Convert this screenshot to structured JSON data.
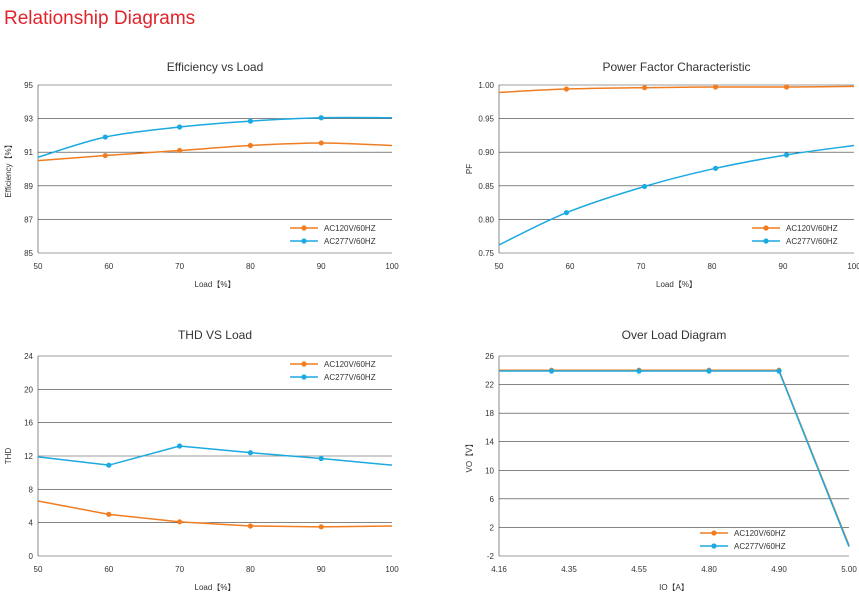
{
  "page_title": "Relationship Diagrams",
  "colors": {
    "ac120": "#f07d22",
    "ac277": "#1aa9e0",
    "grid": "#222222",
    "title": "#e0242c"
  },
  "chart_data": [
    {
      "type": "line",
      "title": "Efficiency vs Load",
      "xlabel": "Load【%】",
      "ylabel": "Efficiency【%】",
      "xlim": [
        50,
        100
      ],
      "ylim": [
        85,
        95
      ],
      "x_ticks": [
        50,
        60,
        70,
        80,
        90,
        100
      ],
      "x_tick_labels": [
        "50",
        "60",
        "70",
        "80",
        "90",
        "100"
      ],
      "y_ticks": [
        85,
        87,
        89,
        91,
        93,
        95
      ],
      "y_tick_labels": [
        "85",
        "87",
        "89",
        "91",
        "93",
        "95"
      ],
      "legend_position": "bottom-right",
      "series": [
        {
          "name": "AC120V/60HZ",
          "color": "#f07d22",
          "x": [
            50,
            59.5,
            70,
            80,
            90,
            100
          ],
          "y": [
            90.5,
            90.8,
            91.1,
            91.4,
            91.55,
            91.4
          ],
          "markers_x": [
            59.5,
            70,
            80,
            90
          ]
        },
        {
          "name": "AC277V/60HZ",
          "color": "#1aa9e0",
          "x": [
            50,
            59.5,
            70,
            80,
            90,
            100
          ],
          "y": [
            90.7,
            91.9,
            92.5,
            92.85,
            93.05,
            93.05
          ],
          "markers_x": [
            59.5,
            70,
            80,
            90
          ]
        }
      ]
    },
    {
      "type": "line",
      "title": "Power Factor Characteristic",
      "xlabel": "Load【%】",
      "ylabel": "PF",
      "xlim": [
        50,
        100
      ],
      "ylim": [
        0.75,
        1.0
      ],
      "x_ticks": [
        50,
        60,
        70,
        80,
        90,
        100
      ],
      "x_tick_labels": [
        "50",
        "60",
        "70",
        "80",
        "90",
        "100"
      ],
      "y_ticks": [
        0.75,
        0.8,
        0.85,
        0.9,
        0.95,
        1.0
      ],
      "y_tick_labels": [
        "0.75",
        "0.80",
        "0.85",
        "0.90",
        "0.95",
        "1.00"
      ],
      "legend_position": "bottom-right",
      "series": [
        {
          "name": "AC120V/60HZ",
          "color": "#f07d22",
          "x": [
            50,
            59.5,
            70.5,
            80.5,
            90.5,
            100
          ],
          "y": [
            0.989,
            0.994,
            0.996,
            0.997,
            0.997,
            0.998
          ],
          "markers_x": [
            59.5,
            70.5,
            80.5,
            90.5
          ]
        },
        {
          "name": "AC277V/60HZ",
          "color": "#1aa9e0",
          "x": [
            50,
            59.5,
            70.5,
            80.5,
            90.5,
            100
          ],
          "y": [
            0.762,
            0.81,
            0.849,
            0.876,
            0.896,
            0.91
          ],
          "markers_x": [
            59.5,
            70.5,
            80.5,
            90.5
          ]
        }
      ]
    },
    {
      "type": "line",
      "title": "THD VS Load",
      "xlabel": "Load【%】",
      "ylabel": "THD",
      "xlim": [
        50,
        100
      ],
      "ylim": [
        0,
        24
      ],
      "x_ticks": [
        50,
        60,
        70,
        80,
        90,
        100
      ],
      "x_tick_labels": [
        "50",
        "60",
        "70",
        "80",
        "90",
        "100"
      ],
      "y_ticks": [
        0,
        4,
        8,
        12,
        16,
        20,
        24
      ],
      "y_tick_labels": [
        "0",
        "4",
        "8",
        "12",
        "16",
        "20",
        "24"
      ],
      "legend_position": "top-right",
      "series": [
        {
          "name": "AC120V/60HZ",
          "color": "#f07d22",
          "x": [
            50,
            60,
            70,
            80,
            90,
            100
          ],
          "y": [
            6.6,
            5.0,
            4.1,
            3.6,
            3.5,
            3.6
          ],
          "markers_x": [
            60,
            70,
            80,
            90
          ]
        },
        {
          "name": "AC277V/60HZ",
          "color": "#1aa9e0",
          "x": [
            50,
            60,
            70,
            80,
            90,
            100
          ],
          "y": [
            11.9,
            10.9,
            13.2,
            12.4,
            11.7,
            10.9
          ],
          "markers_x": [
            60,
            70,
            80,
            90
          ]
        }
      ]
    },
    {
      "type": "line",
      "title": "Over Load Diagram",
      "xlabel": "IO【A】",
      "ylabel": "VO【V】",
      "x_tick_labels": [
        "4.16",
        "4.35",
        "4.55",
        "4.80",
        "4.90",
        "5.00"
      ],
      "ylim": [
        -2,
        26
      ],
      "y_ticks": [
        -2,
        2,
        6,
        10,
        14,
        18,
        22,
        26
      ],
      "y_tick_labels": [
        "-2",
        "2",
        "6",
        "10",
        "14",
        "18",
        "22",
        "26"
      ],
      "legend_position": "bottom-right",
      "series": [
        {
          "name": "AC120V/60HZ",
          "color": "#f07d22",
          "x_index": [
            0,
            0.75,
            2,
            3,
            4,
            5
          ],
          "y": [
            24,
            24,
            24,
            24,
            24,
            -0.5
          ],
          "markers_index": [
            0.75,
            2,
            3,
            4
          ]
        },
        {
          "name": "AC277V/60HZ",
          "color": "#1aa9e0",
          "x_index": [
            0,
            0.75,
            2,
            3,
            4,
            5
          ],
          "y": [
            23.9,
            23.9,
            23.9,
            23.9,
            23.9,
            -0.7
          ],
          "markers_index": [
            0.75,
            2,
            3,
            4
          ]
        }
      ]
    }
  ]
}
